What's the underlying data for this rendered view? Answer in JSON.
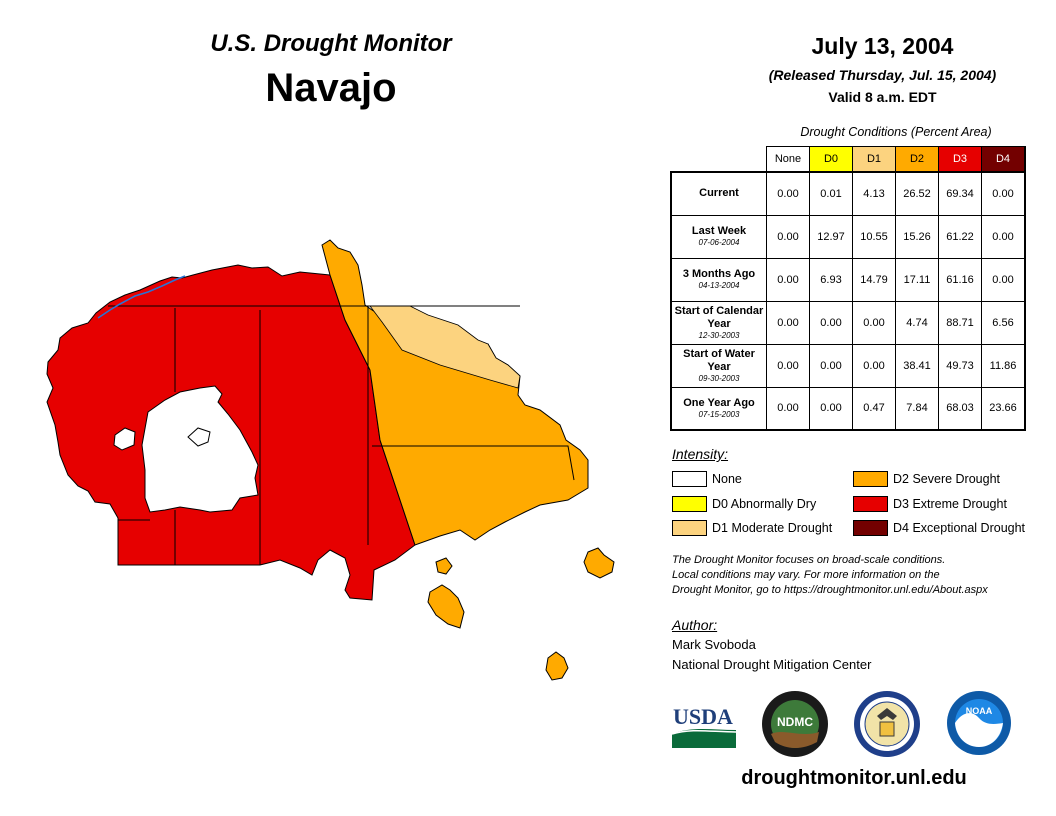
{
  "header": {
    "title": "U.S. Drought Monitor",
    "region": "Navajo",
    "date": "July 13, 2004",
    "released": "(Released Thursday, Jul. 15, 2004)",
    "valid": "Valid 8 a.m. EDT"
  },
  "table": {
    "caption": "Drought Conditions (Percent Area)",
    "columns": [
      {
        "label": "None",
        "color": "#ffffff"
      },
      {
        "label": "D0",
        "color": "#ffff00"
      },
      {
        "label": "D1",
        "color": "#fcd37f"
      },
      {
        "label": "D2",
        "color": "#ffaa00"
      },
      {
        "label": "D3",
        "color": "#e60000"
      },
      {
        "label": "D4",
        "color": "#730000"
      }
    ],
    "rows": [
      {
        "label": "Current",
        "date": "",
        "values": [
          "0.00",
          "0.01",
          "4.13",
          "26.52",
          "69.34",
          "0.00"
        ]
      },
      {
        "label": "Last Week",
        "date": "07-06-2004",
        "values": [
          "0.00",
          "12.97",
          "10.55",
          "15.26",
          "61.22",
          "0.00"
        ]
      },
      {
        "label": "3 Months Ago",
        "date": "04-13-2004",
        "values": [
          "0.00",
          "6.93",
          "14.79",
          "17.11",
          "61.16",
          "0.00"
        ]
      },
      {
        "label": "Start of Calendar Year",
        "date": "12-30-2003",
        "values": [
          "0.00",
          "0.00",
          "0.00",
          "4.74",
          "88.71",
          "6.56"
        ]
      },
      {
        "label": "Start of Water Year",
        "date": "09-30-2003",
        "values": [
          "0.00",
          "0.00",
          "0.00",
          "38.41",
          "49.73",
          "11.86"
        ]
      },
      {
        "label": "One Year Ago",
        "date": "07-15-2003",
        "values": [
          "0.00",
          "0.00",
          "0.47",
          "7.84",
          "68.03",
          "23.66"
        ]
      }
    ]
  },
  "legend": {
    "title": "Intensity:",
    "items": [
      {
        "label": "None",
        "color": "#ffffff"
      },
      {
        "label": "D0 Abnormally Dry",
        "color": "#ffff00"
      },
      {
        "label": "D1 Moderate Drought",
        "color": "#fcd37f"
      },
      {
        "label": "D2 Severe Drought",
        "color": "#ffaa00"
      },
      {
        "label": "D3 Extreme Drought",
        "color": "#e60000"
      },
      {
        "label": "D4 Exceptional Drought",
        "color": "#730000"
      }
    ]
  },
  "note": {
    "line1": "The Drought Monitor focuses on broad-scale conditions.",
    "line2": "Local conditions may vary. For more information on the",
    "line3": "Drought Monitor, go to https://droughtmonitor.unl.edu/About.aspx"
  },
  "author": {
    "label": "Author:",
    "name": "Mark Svoboda",
    "org": "National Drought Mitigation Center"
  },
  "logos": {
    "usda": "USDA",
    "ndmc": "NDMC",
    "noaa": "NOAA"
  },
  "footer": {
    "url": "droughtmonitor.unl.edu"
  }
}
